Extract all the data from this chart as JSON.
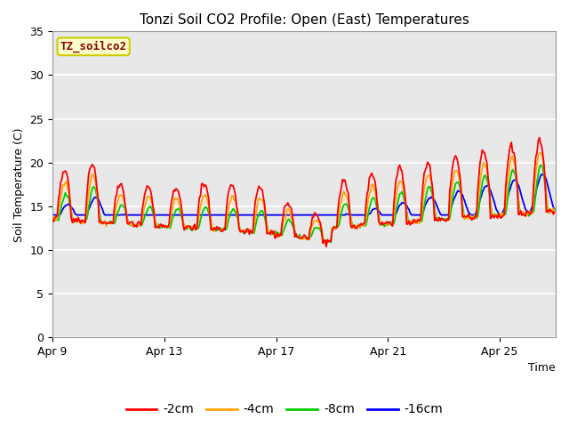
{
  "title": "Tonzi Soil CO2 Profile: Open (East) Temperatures",
  "ylabel": "Soil Temperature (C)",
  "xlabel": "Time",
  "ylim": [
    0,
    35
  ],
  "yticks": [
    0,
    5,
    10,
    15,
    20,
    25,
    30,
    35
  ],
  "colors": {
    "2cm": "#ff0000",
    "4cm": "#ffa500",
    "8cm": "#00cc00",
    "16cm": "#0000ff"
  },
  "legend_labels": [
    "-2cm",
    "-4cm",
    "-8cm",
    "-16cm"
  ],
  "legend_colors": [
    "#ff0000",
    "#ffa500",
    "#00cc00",
    "#0000ff"
  ],
  "watermark_text": "TZ_soilco2",
  "watermark_color": "#8b0000",
  "watermark_bg": "#ffffcc",
  "watermark_border": "#cccc00",
  "axis_bg": "#e8e8e8",
  "grid_color": "#ffffff",
  "num_days": 18,
  "xticklabels": [
    "Apr 9",
    "Apr 13",
    "Apr 17",
    "Apr 21",
    "Apr 25"
  ],
  "xtick_positions": [
    0,
    4,
    8,
    12,
    16
  ]
}
